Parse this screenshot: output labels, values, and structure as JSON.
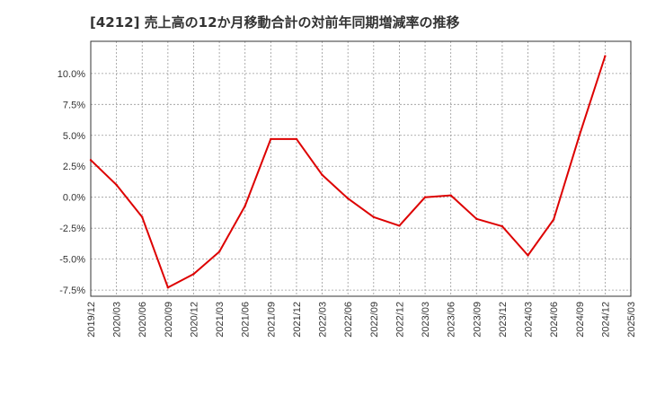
{
  "chart_data": {
    "type": "line",
    "title": "[4212]  売上高の12か月移動合計の対前年同期増減率の推移",
    "xlabel": "",
    "ylabel": "",
    "ylim": [
      -8.0,
      12.6
    ],
    "y_ticks": [
      10.0,
      7.5,
      5.0,
      2.5,
      0.0,
      -2.5,
      -5.0,
      -7.5
    ],
    "y_tick_labels": [
      "10.0%",
      "7.5%",
      "5.0%",
      "2.5%",
      "0.0%",
      "-2.5%",
      "-5.0%",
      "-7.5%"
    ],
    "categories": [
      "2019/12",
      "2020/03",
      "2020/06",
      "2020/09",
      "2020/12",
      "2021/03",
      "2021/06",
      "2021/09",
      "2021/12",
      "2022/03",
      "2022/06",
      "2022/09",
      "2022/12",
      "2023/03",
      "2023/06",
      "2023/09",
      "2023/12",
      "2024/03",
      "2024/06",
      "2024/09",
      "2024/12",
      "2025/03"
    ],
    "grid": true,
    "series": [
      {
        "name": "対前年同期増減率",
        "color": "#dd0000",
        "values": [
          3.0,
          1.0,
          -1.6,
          -7.3,
          -6.2,
          -4.4,
          -0.7,
          4.7,
          4.7,
          1.8,
          -0.1,
          -1.6,
          -2.3,
          0.0,
          0.15,
          -1.75,
          -2.35,
          -4.7,
          -1.8,
          5.0,
          11.4,
          null
        ]
      }
    ]
  }
}
